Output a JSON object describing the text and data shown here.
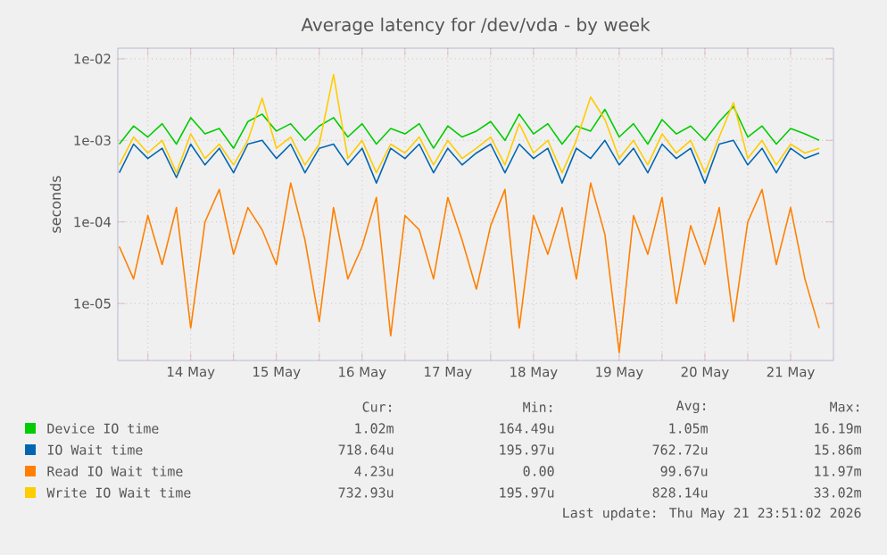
{
  "chart_data": {
    "type": "line",
    "title": "Average latency for /dev/vda - by week",
    "ylabel": "seconds",
    "log": "y",
    "grid": true,
    "legend": "bottom",
    "xlim": [
      "2026-05-13T15:35",
      "2026-05-22T00:00"
    ],
    "ylim": [
      2e-06,
      0.0135
    ],
    "xticks": [
      {
        "value": "2026-05-14T00:00",
        "label": null
      },
      {
        "value": "2026-05-14T12:00",
        "label": "14 May"
      },
      {
        "value": "2026-05-15T00:00",
        "label": null
      },
      {
        "value": "2026-05-15T12:00",
        "label": "15 May"
      },
      {
        "value": "2026-05-16T00:00",
        "label": null
      },
      {
        "value": "2026-05-16T12:00",
        "label": "16 May"
      },
      {
        "value": "2026-05-17T00:00",
        "label": null
      },
      {
        "value": "2026-05-17T12:00",
        "label": "17 May"
      },
      {
        "value": "2026-05-18T00:00",
        "label": null
      },
      {
        "value": "2026-05-18T12:00",
        "label": "18 May"
      },
      {
        "value": "2026-05-19T00:00",
        "label": null
      },
      {
        "value": "2026-05-19T12:00",
        "label": "19 May"
      },
      {
        "value": "2026-05-20T00:00",
        "label": null
      },
      {
        "value": "2026-05-20T12:00",
        "label": "20 May"
      },
      {
        "value": "2026-05-21T00:00",
        "label": null
      },
      {
        "value": "2026-05-21T12:00",
        "label": "21 May"
      }
    ],
    "yticks": [
      {
        "value": 1e-05,
        "label": "1e-05"
      },
      {
        "value": 0.0001,
        "label": "1e-04"
      },
      {
        "value": 0.001,
        "label": "1e-03"
      },
      {
        "value": 0.01,
        "label": "1e-02"
      }
    ],
    "x": [
      "2026-05-13T16:00",
      "2026-05-13T20:00",
      "2026-05-14T00:00",
      "2026-05-14T04:00",
      "2026-05-14T08:00",
      "2026-05-14T12:00",
      "2026-05-14T16:00",
      "2026-05-14T20:00",
      "2026-05-15T00:00",
      "2026-05-15T04:00",
      "2026-05-15T08:00",
      "2026-05-15T12:00",
      "2026-05-15T16:00",
      "2026-05-15T20:00",
      "2026-05-16T00:00",
      "2026-05-16T04:00",
      "2026-05-16T08:00",
      "2026-05-16T12:00",
      "2026-05-16T16:00",
      "2026-05-16T20:00",
      "2026-05-17T00:00",
      "2026-05-17T04:00",
      "2026-05-17T08:00",
      "2026-05-17T12:00",
      "2026-05-17T16:00",
      "2026-05-17T20:00",
      "2026-05-18T00:00",
      "2026-05-18T04:00",
      "2026-05-18T08:00",
      "2026-05-18T12:00",
      "2026-05-18T16:00",
      "2026-05-18T20:00",
      "2026-05-19T00:00",
      "2026-05-19T04:00",
      "2026-05-19T08:00",
      "2026-05-19T12:00",
      "2026-05-19T16:00",
      "2026-05-19T20:00",
      "2026-05-20T00:00",
      "2026-05-20T04:00",
      "2026-05-20T08:00",
      "2026-05-20T12:00",
      "2026-05-20T16:00",
      "2026-05-20T20:00",
      "2026-05-21T00:00",
      "2026-05-21T04:00",
      "2026-05-21T08:00",
      "2026-05-21T12:00",
      "2026-05-21T16:00",
      "2026-05-21T20:00"
    ],
    "series": [
      {
        "name": "Device IO time",
        "color": "#00cc00",
        "values": [
          0.0009,
          0.0015,
          0.0011,
          0.0016,
          0.0009,
          0.0019,
          0.0012,
          0.0014,
          0.0008,
          0.0017,
          0.0021,
          0.0013,
          0.0016,
          0.001,
          0.0015,
          0.0019,
          0.0011,
          0.0016,
          0.0009,
          0.0014,
          0.0012,
          0.0016,
          0.0008,
          0.0015,
          0.0011,
          0.0013,
          0.0017,
          0.001,
          0.0021,
          0.0012,
          0.0016,
          0.0009,
          0.0015,
          0.0013,
          0.0024,
          0.0011,
          0.0016,
          0.0009,
          0.0018,
          0.0012,
          0.0015,
          0.001,
          0.0017,
          0.0026,
          0.0011,
          0.0015,
          0.0009,
          0.0014,
          0.0012,
          0.001
        ]
      },
      {
        "name": "IO Wait time",
        "color": "#0066b3",
        "values": [
          0.0004,
          0.0009,
          0.0006,
          0.0008,
          0.00035,
          0.0009,
          0.0005,
          0.0008,
          0.0004,
          0.0009,
          0.001,
          0.0006,
          0.0009,
          0.0004,
          0.0008,
          0.0009,
          0.0005,
          0.0008,
          0.0003,
          0.0008,
          0.0006,
          0.0009,
          0.0004,
          0.0008,
          0.0005,
          0.0007,
          0.0009,
          0.0004,
          0.0009,
          0.0006,
          0.0008,
          0.0003,
          0.0008,
          0.0006,
          0.001,
          0.0005,
          0.0008,
          0.0004,
          0.0009,
          0.0006,
          0.0008,
          0.0003,
          0.0009,
          0.001,
          0.0005,
          0.0008,
          0.0004,
          0.0008,
          0.0006,
          0.0007
        ]
      },
      {
        "name": "Read IO Wait time",
        "color": "#ff8000",
        "values": [
          5e-05,
          2e-05,
          0.00012,
          3e-05,
          0.00015,
          5e-06,
          0.0001,
          0.00025,
          4e-05,
          0.00015,
          8e-05,
          3e-05,
          0.0003,
          6e-05,
          6e-06,
          0.00015,
          2e-05,
          5e-05,
          0.0002,
          4e-06,
          0.00012,
          8e-05,
          2e-05,
          0.0002,
          6e-05,
          1.5e-05,
          9e-05,
          0.00025,
          5e-06,
          0.00012,
          4e-05,
          0.00015,
          2e-05,
          0.0003,
          7e-05,
          2.5e-06,
          0.00012,
          4e-05,
          0.0002,
          1e-05,
          9e-05,
          3e-05,
          0.00015,
          6e-06,
          0.0001,
          0.00025,
          3e-05,
          0.00015,
          2e-05,
          5e-06
        ]
      },
      {
        "name": "Write IO Wait time",
        "color": "#ffcc00",
        "values": [
          0.0005,
          0.0011,
          0.0007,
          0.001,
          0.0004,
          0.0012,
          0.0006,
          0.0009,
          0.0005,
          0.001,
          0.0033,
          0.0008,
          0.0011,
          0.0005,
          0.0009,
          0.0064,
          0.0006,
          0.001,
          0.0004,
          0.0009,
          0.0007,
          0.0011,
          0.0005,
          0.001,
          0.0006,
          0.0008,
          0.0011,
          0.0005,
          0.0016,
          0.0007,
          0.001,
          0.0004,
          0.001,
          0.0034,
          0.0018,
          0.0006,
          0.001,
          0.0005,
          0.0012,
          0.0007,
          0.001,
          0.0004,
          0.0011,
          0.0029,
          0.0006,
          0.001,
          0.0005,
          0.0009,
          0.0007,
          0.0008
        ]
      }
    ],
    "annotations": [
      "Cur:",
      "Min:",
      "Avg:",
      "Max:",
      "1.02m",
      "164.49u",
      "1.05m",
      "16.19m",
      "718.64u",
      "195.97u",
      "762.72u",
      "15.86m",
      "4.23u",
      "0.00",
      "99.67u",
      "11.97m",
      "732.93u",
      "195.97u",
      "828.14u",
      "33.02m",
      "Last update: Thu May 21 23:51:02 2026"
    ]
  }
}
